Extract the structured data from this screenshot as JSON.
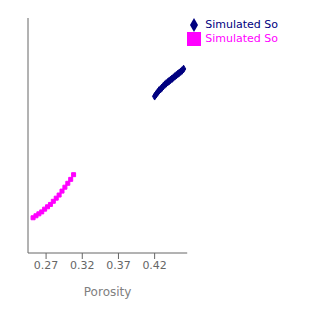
{
  "chart_data": {
    "type": "line",
    "title": "",
    "xlabel": "Porosity",
    "xlim": [
      0.245,
      0.465
    ],
    "xticks": [
      0.27,
      0.32,
      0.37,
      0.42
    ],
    "ylim": [
      -0.05,
      0.55
    ],
    "tick_labels": "x",
    "legend": "upper right",
    "series": [
      {
        "name": "Simulated So",
        "color": "#000080",
        "marker": "diamond",
        "x": [
          0.42,
          0.422,
          0.424,
          0.426,
          0.428,
          0.43,
          0.432,
          0.434,
          0.436,
          0.438,
          0.44,
          0.442,
          0.444,
          0.446,
          0.448,
          0.45,
          0.452,
          0.454,
          0.456,
          0.458,
          0.46
        ],
        "values": [
          0.35,
          0.355,
          0.36,
          0.365,
          0.368,
          0.372,
          0.376,
          0.38,
          0.383,
          0.386,
          0.389,
          0.392,
          0.395,
          0.398,
          0.401,
          0.404,
          0.407,
          0.41,
          0.413,
          0.416,
          0.42
        ]
      },
      {
        "name": "Simulated So",
        "color": "#FF00FF",
        "marker": "square",
        "x": [
          0.252,
          0.256,
          0.26,
          0.264,
          0.268,
          0.272,
          0.276,
          0.28,
          0.284,
          0.288,
          0.292,
          0.296,
          0.3,
          0.304,
          0.308
        ],
        "values": [
          0.04,
          0.045,
          0.05,
          0.055,
          0.062,
          0.068,
          0.074,
          0.082,
          0.09,
          0.098,
          0.108,
          0.118,
          0.128,
          0.138,
          0.15
        ]
      }
    ]
  }
}
